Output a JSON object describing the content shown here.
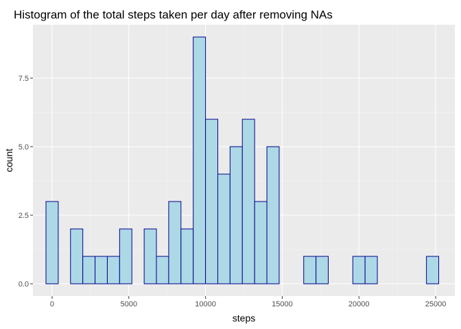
{
  "chart_data": {
    "type": "bar",
    "title": "Histogram of the total steps taken per day after removing NAs",
    "xlabel": "steps",
    "ylabel": "count",
    "xlim": [
      -1250,
      26250
    ],
    "ylim": [
      -0.45,
      9.45
    ],
    "x_ticks": [
      0,
      5000,
      10000,
      15000,
      20000,
      25000
    ],
    "x_tick_labels": [
      "0",
      "5000",
      "10000",
      "15000",
      "20000",
      "25000"
    ],
    "y_ticks": [
      0,
      2.5,
      5,
      7.5
    ],
    "y_tick_labels": [
      "0.0",
      "2.5",
      "5.0",
      "7.5"
    ],
    "bin_width": 800,
    "bins": [
      {
        "x": 0,
        "count": 3
      },
      {
        "x": 1600,
        "count": 2
      },
      {
        "x": 2400,
        "count": 1
      },
      {
        "x": 3200,
        "count": 1
      },
      {
        "x": 4000,
        "count": 1
      },
      {
        "x": 4800,
        "count": 2
      },
      {
        "x": 6400,
        "count": 2
      },
      {
        "x": 7200,
        "count": 1
      },
      {
        "x": 8000,
        "count": 3
      },
      {
        "x": 8800,
        "count": 2
      },
      {
        "x": 9600,
        "count": 9
      },
      {
        "x": 10400,
        "count": 6
      },
      {
        "x": 11200,
        "count": 4
      },
      {
        "x": 12000,
        "count": 5
      },
      {
        "x": 12800,
        "count": 6
      },
      {
        "x": 13600,
        "count": 3
      },
      {
        "x": 14400,
        "count": 5
      },
      {
        "x": 16800,
        "count": 1
      },
      {
        "x": 17600,
        "count": 1
      },
      {
        "x": 20000,
        "count": 1
      },
      {
        "x": 20800,
        "count": 1
      },
      {
        "x": 24800,
        "count": 1
      }
    ],
    "grid": true,
    "colors": {
      "panel_background": "#ebebeb",
      "grid_major": "#ffffff",
      "grid_minor": "#f5f5f5",
      "bar_fill": "#add8e6",
      "bar_outline": "#00008b"
    }
  }
}
